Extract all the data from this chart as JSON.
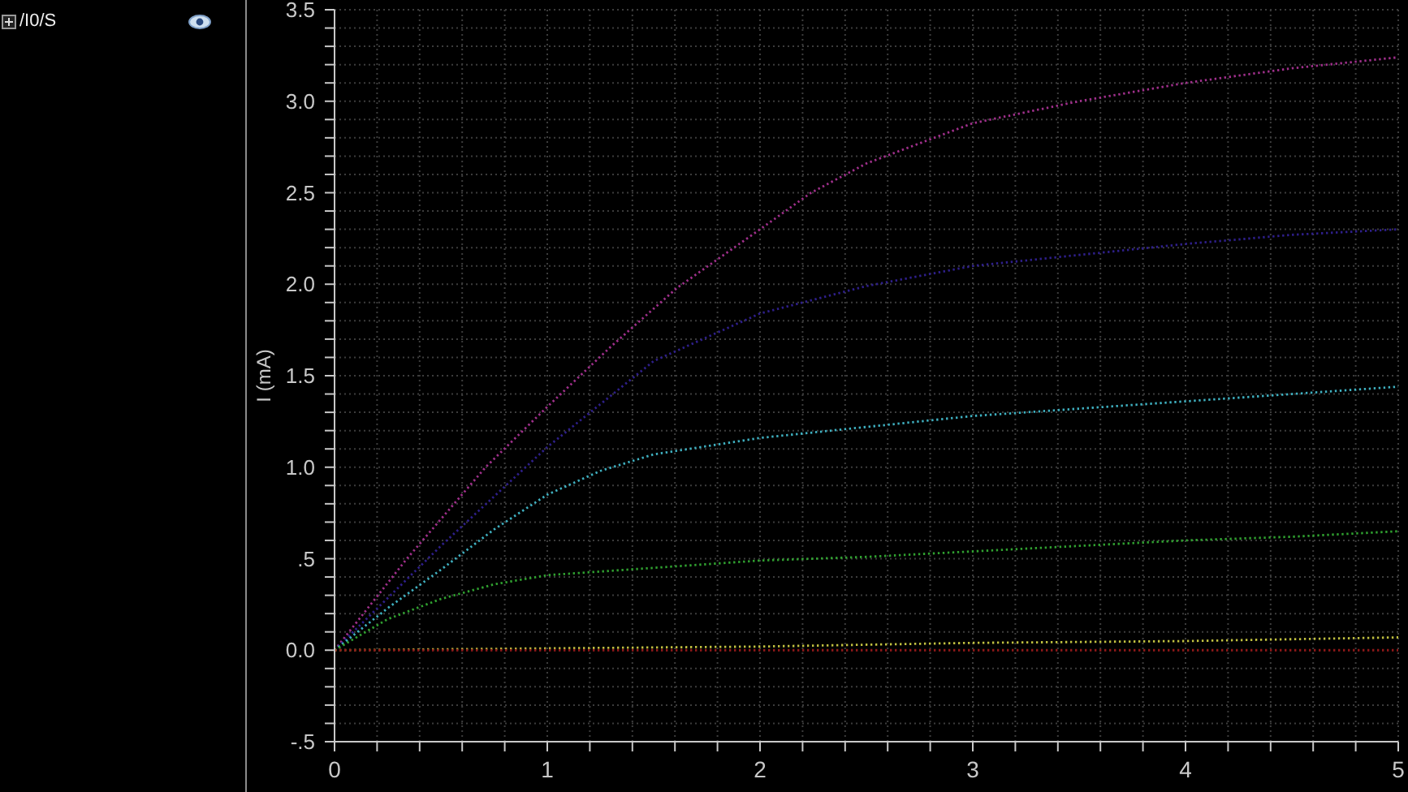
{
  "chart_data": {
    "type": "line",
    "ylabel": "I (mA)",
    "annotations": [
      "/I0/S"
    ],
    "xlim": [
      0,
      5
    ],
    "ylim": [
      -0.5,
      3.5
    ],
    "xticks": [
      0,
      {
        "value": 0.2,
        "label": null
      },
      {
        "value": 0.4,
        "label": null
      },
      {
        "value": 0.6,
        "label": null
      },
      {
        "value": 0.8,
        "label": null
      },
      1,
      {
        "value": 1.2,
        "label": null
      },
      {
        "value": 1.4,
        "label": null
      },
      {
        "value": 1.6,
        "label": null
      },
      {
        "value": 1.8,
        "label": null
      },
      2,
      {
        "value": 2.2,
        "label": null
      },
      {
        "value": 2.4,
        "label": null
      },
      {
        "value": 2.6,
        "label": null
      },
      {
        "value": 2.8,
        "label": null
      },
      3,
      {
        "value": 3.2,
        "label": null
      },
      {
        "value": 3.4,
        "label": null
      },
      {
        "value": 3.6,
        "label": null
      },
      {
        "value": 3.8,
        "label": null
      },
      4,
      {
        "value": 4.2,
        "label": null
      },
      {
        "value": 4.4,
        "label": null
      },
      {
        "value": 4.6,
        "label": null
      },
      {
        "value": 4.8,
        "label": null
      },
      5
    ],
    "yticks": [
      {
        "value": -0.5,
        "label": "-.5"
      },
      {
        "value": -0.4,
        "label": null
      },
      {
        "value": -0.3,
        "label": null
      },
      {
        "value": -0.2,
        "label": null
      },
      {
        "value": -0.1,
        "label": null
      },
      {
        "value": 0,
        "label": "0.0"
      },
      {
        "value": 0.1,
        "label": null
      },
      {
        "value": 0.2,
        "label": null
      },
      {
        "value": 0.3,
        "label": null
      },
      {
        "value": 0.4,
        "label": null
      },
      {
        "value": 0.5,
        "label": ".5"
      },
      {
        "value": 0.6,
        "label": null
      },
      {
        "value": 0.7,
        "label": null
      },
      {
        "value": 0.8,
        "label": null
      },
      {
        "value": 0.9,
        "label": null
      },
      {
        "value": 1,
        "label": "1.0"
      },
      {
        "value": 1.1,
        "label": null
      },
      {
        "value": 1.2,
        "label": null
      },
      {
        "value": 1.3,
        "label": null
      },
      {
        "value": 1.4,
        "label": null
      },
      1.5,
      {
        "value": 1.6,
        "label": null
      },
      {
        "value": 1.7,
        "label": null
      },
      {
        "value": 1.8,
        "label": null
      },
      {
        "value": 1.9,
        "label": null
      },
      {
        "value": 2,
        "label": "2.0"
      },
      {
        "value": 2.1,
        "label": null
      },
      {
        "value": 2.2,
        "label": null
      },
      {
        "value": 2.3,
        "label": null
      },
      {
        "value": 2.4,
        "label": null
      },
      2.5,
      {
        "value": 2.6,
        "label": null
      },
      {
        "value": 2.7,
        "label": null
      },
      {
        "value": 2.8,
        "label": null
      },
      {
        "value": 2.9,
        "label": null
      },
      {
        "value": 3,
        "label": "3.0"
      },
      {
        "value": 3.1,
        "label": null
      },
      {
        "value": 3.2,
        "label": null
      },
      {
        "value": 3.3,
        "label": null
      },
      {
        "value": 3.4,
        "label": null
      },
      3.5
    ],
    "grid": true,
    "line_style": "dotted",
    "series": [
      {
        "color": "#a0308c",
        "x": [
          0,
          0.34,
          0.71,
          1,
          1.3,
          1.61,
          2,
          2.24,
          2.5,
          3,
          3.5,
          4,
          4.5,
          5
        ],
        "values": [
          0,
          0.5,
          1.0,
          1.33,
          1.66,
          1.98,
          2.3,
          2.5,
          2.66,
          2.88,
          3.0,
          3.1,
          3.18,
          3.24
        ]
      },
      {
        "color": "#2e1f8a",
        "x": [
          0,
          0.5,
          1,
          1.5,
          2,
          2.5,
          3,
          3.5,
          4,
          4.5,
          5
        ],
        "values": [
          0,
          0.57,
          1.11,
          1.58,
          1.84,
          1.99,
          2.1,
          2.16,
          2.22,
          2.27,
          2.3
        ]
      },
      {
        "color": "#3fb0c0",
        "x": [
          0,
          0.25,
          0.5,
          0.75,
          1,
          1.25,
          1.5,
          2,
          2.5,
          3,
          3.5,
          4,
          4.5,
          5
        ],
        "values": [
          0,
          0.23,
          0.44,
          0.66,
          0.85,
          0.98,
          1.07,
          1.16,
          1.22,
          1.28,
          1.32,
          1.36,
          1.4,
          1.44
        ]
      },
      {
        "color": "#30a030",
        "x": [
          0,
          0.25,
          0.5,
          0.75,
          1,
          1.5,
          2,
          2.5,
          3,
          3.5,
          4,
          4.5,
          5
        ],
        "values": [
          0,
          0.17,
          0.28,
          0.36,
          0.41,
          0.45,
          0.49,
          0.51,
          0.54,
          0.57,
          0.6,
          0.62,
          0.65
        ]
      },
      {
        "color": "#c0c040",
        "x": [
          0,
          1,
          2,
          3,
          4,
          5
        ],
        "values": [
          0,
          0.01,
          0.02,
          0.04,
          0.05,
          0.07
        ]
      },
      {
        "color": "#901818",
        "x": [
          0,
          5
        ],
        "values": [
          0,
          0
        ]
      }
    ]
  }
}
